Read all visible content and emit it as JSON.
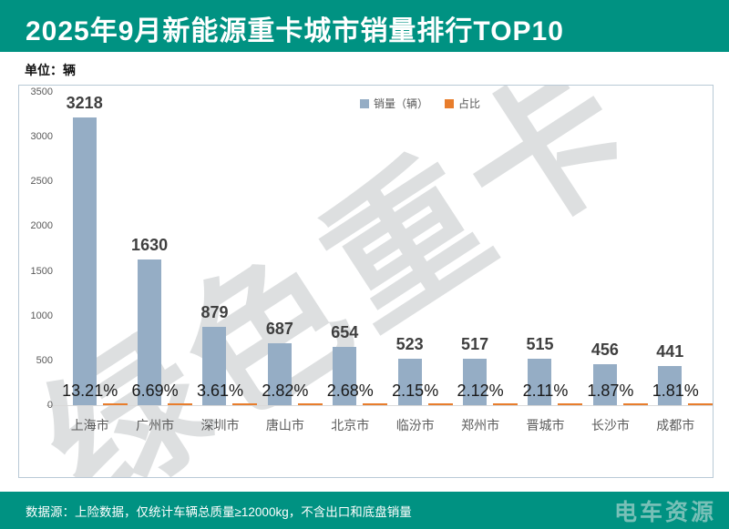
{
  "header": {
    "title": "2025年9月新能源重卡城市销量排行TOP10"
  },
  "unit_label": "单位：辆",
  "watermark_text": "绿色重卡",
  "footer": {
    "note": "数据源：上险数据，仅统计车辆总质量≥12000kg，不含出口和底盘销量",
    "logo": "电车资源"
  },
  "colors": {
    "accent_teal": "#009282",
    "sales_bar": "#95adc5",
    "share_bar": "#e87d2c",
    "chart_border": "#b9c9d6",
    "axis_line": "#d9d9d9",
    "watermark_gray": "#c1c4c7"
  },
  "chart_data": {
    "type": "bar",
    "title": "2025年9月新能源重卡城市销量排行TOP10",
    "xlabel": "",
    "ylabel": "单位：辆",
    "categories": [
      "上海市",
      "广州市",
      "深圳市",
      "唐山市",
      "北京市",
      "临汾市",
      "郑州市",
      "晋城市",
      "长沙市",
      "成都市"
    ],
    "series": [
      {
        "name": "销量（辆）",
        "color": "#95adc5",
        "values": [
          3218,
          1630,
          879,
          687,
          654,
          523,
          517,
          515,
          456,
          441
        ]
      },
      {
        "name": "占比",
        "color": "#e87d2c",
        "values": [
          13.21,
          6.69,
          3.61,
          2.82,
          2.68,
          2.15,
          2.12,
          2.11,
          1.87,
          1.81
        ],
        "labels": [
          "13.21%",
          "6.69%",
          "3.61%",
          "2.82%",
          "2.68%",
          "2.15%",
          "2.12%",
          "2.11%",
          "1.87%",
          "1.81%"
        ]
      }
    ],
    "ylim": [
      0,
      3500
    ],
    "y_ticks": [
      0,
      500,
      1000,
      1500,
      2000,
      2500,
      3000,
      3500
    ],
    "grid": false,
    "legend_position": "top-center"
  }
}
